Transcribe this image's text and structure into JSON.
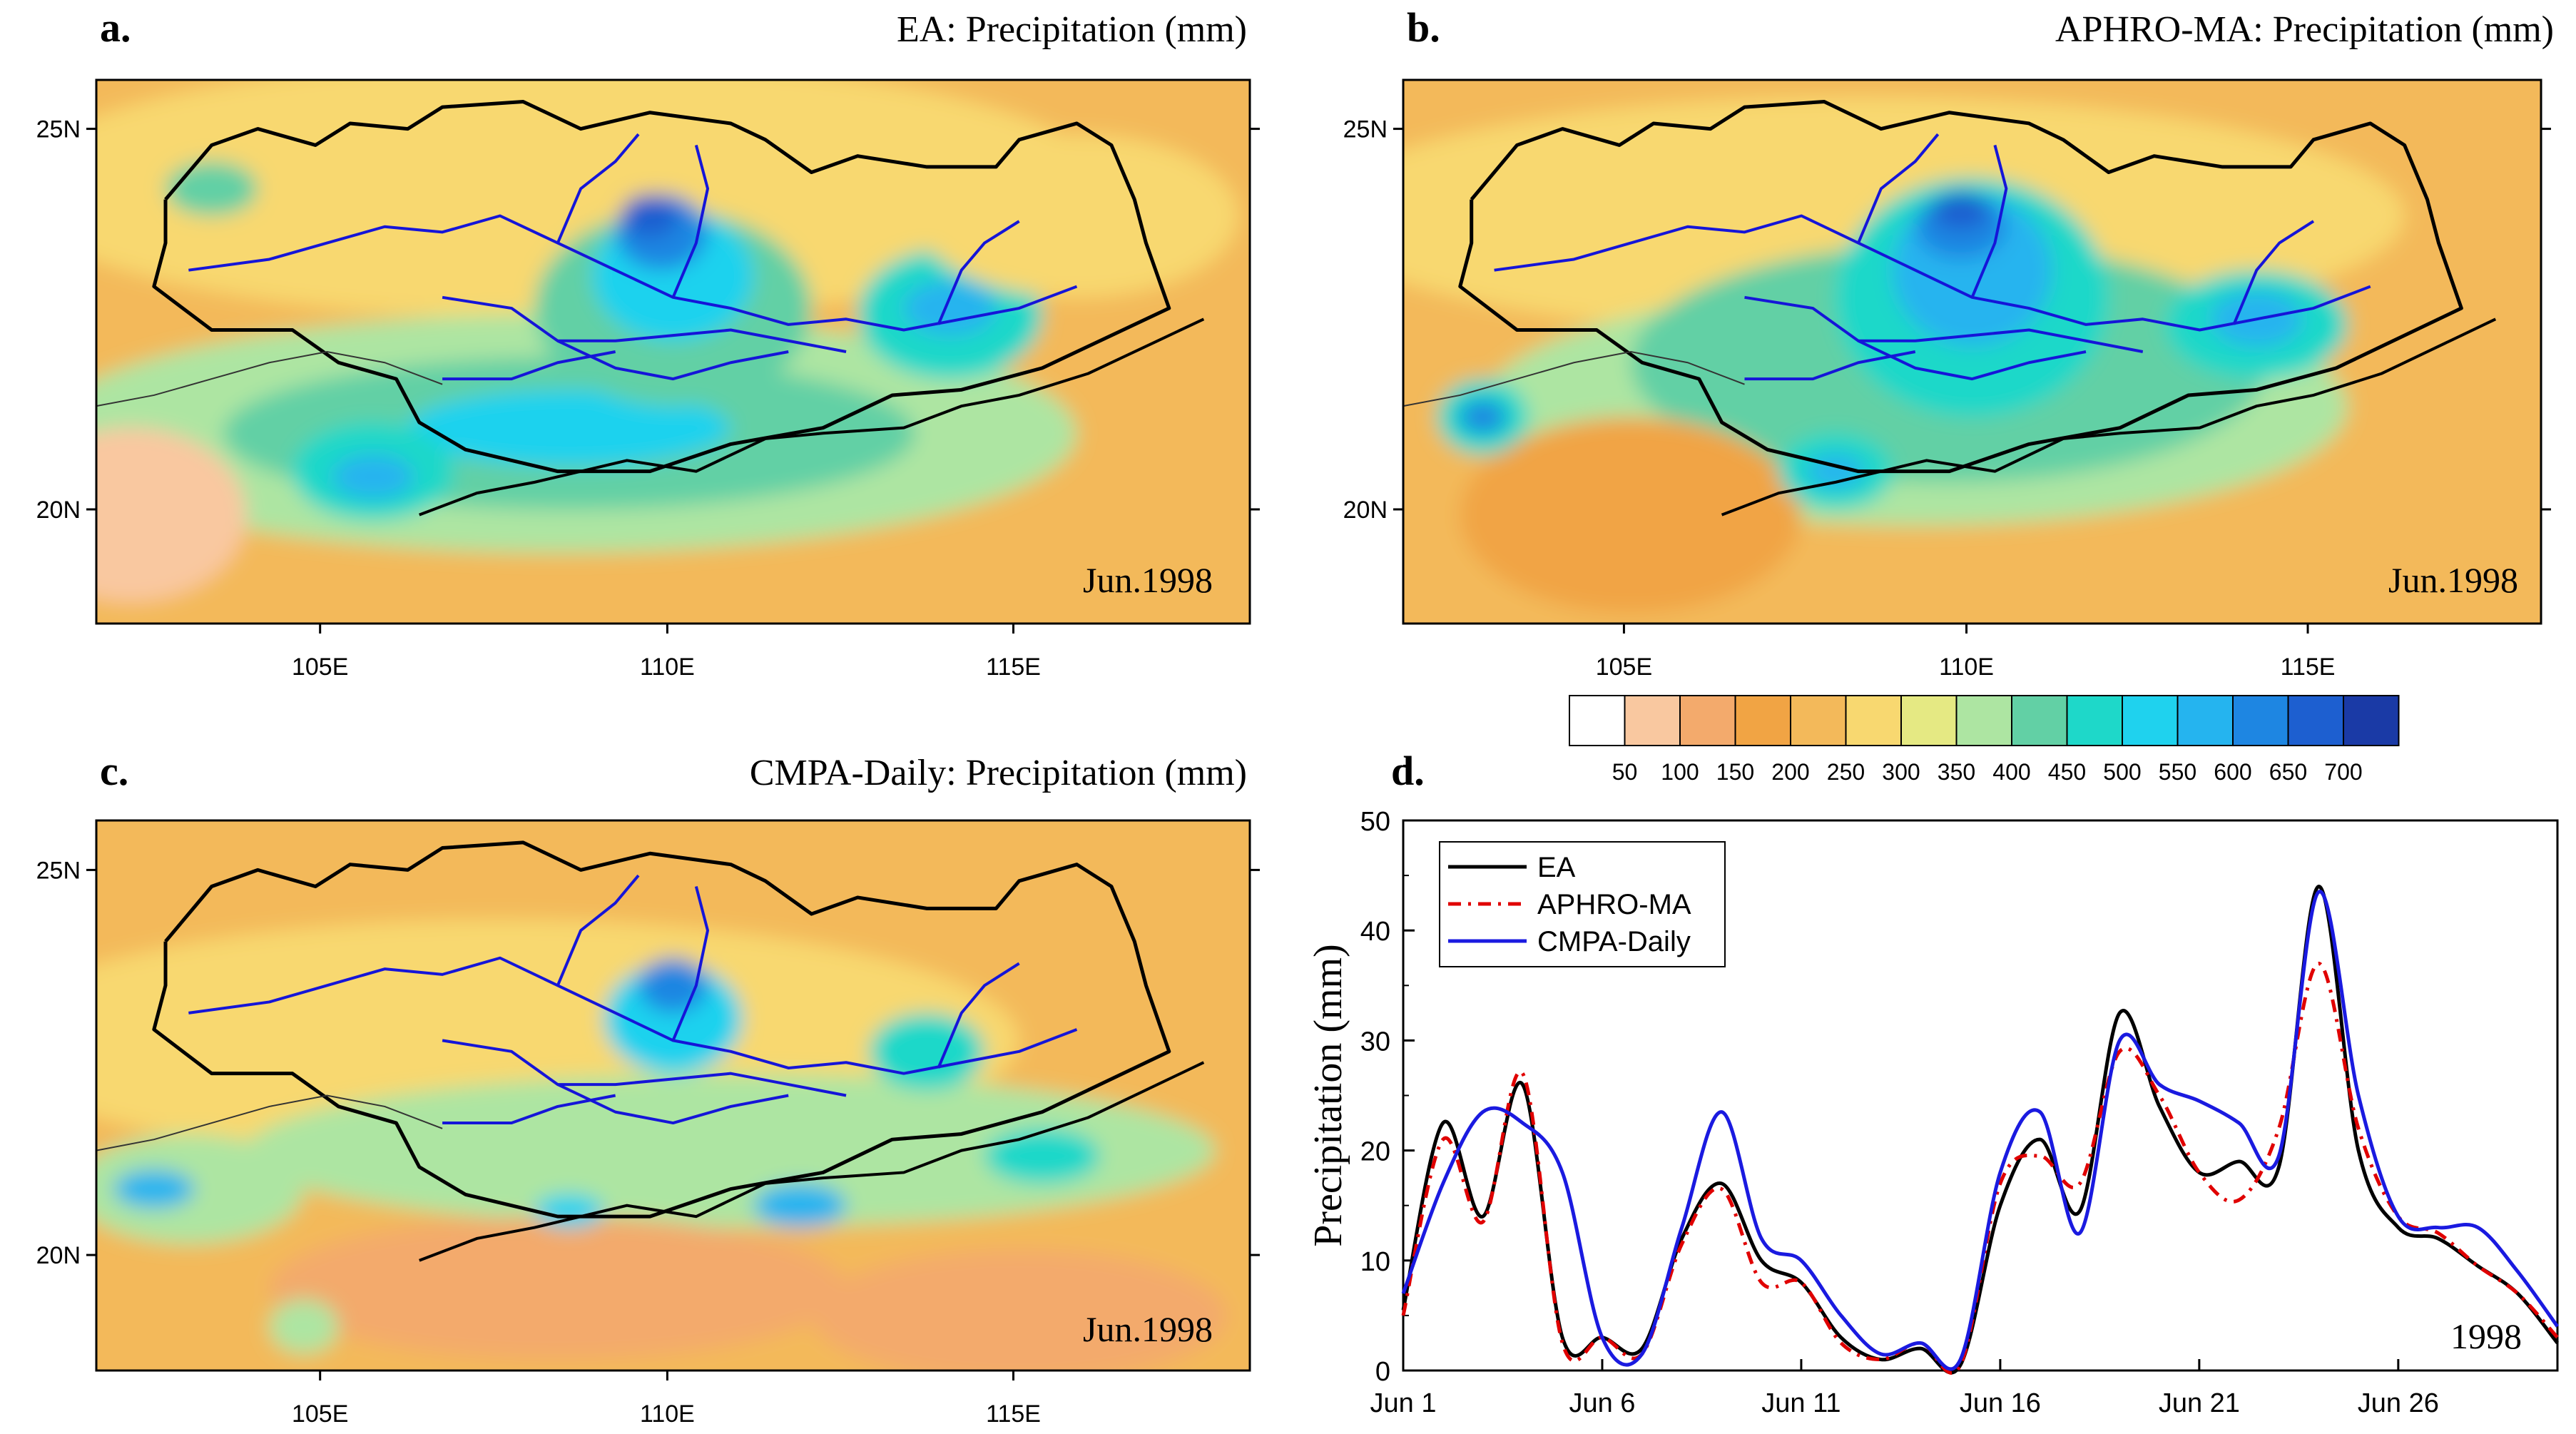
{
  "figure": {
    "colorbar": {
      "labels": [
        "50",
        "100",
        "150",
        "200",
        "250",
        "300",
        "350",
        "400",
        "450",
        "500",
        "550",
        "600",
        "650",
        "700"
      ],
      "colors": [
        "#ffffff",
        "#f9c8a0",
        "#f3aa6c",
        "#f1a444",
        "#f3b95a",
        "#f8d870",
        "#e5e983",
        "#ade5a2",
        "#62d0a5",
        "#1ed8c9",
        "#1fd2ee",
        "#25b4ef",
        "#1e86e2",
        "#1d5fd0",
        "#1a3aa6"
      ]
    },
    "maps": [
      {
        "id": "a",
        "panel_label": "a.",
        "title": "EA: Precipitation (mm)",
        "stamp": "Jun.1998",
        "lat_ticks": [
          "25N",
          "20N"
        ],
        "lon_ticks": [
          "105E",
          "110E",
          "115E"
        ],
        "blobs": [
          {
            "level": 5,
            "c": [
              40,
              20
            ],
            "r": [
              48,
              24
            ]
          },
          {
            "level": 7,
            "c": [
              40,
              65
            ],
            "r": [
              45,
              22
            ]
          },
          {
            "level": 8,
            "c": [
              41,
              65
            ],
            "r": [
              30,
              14
            ]
          },
          {
            "level": 10,
            "c": [
              41,
              64
            ],
            "r": [
              14,
              7
            ]
          },
          {
            "level": 1,
            "c": [
              3,
              80
            ],
            "r": [
              10,
              16
            ]
          },
          {
            "level": 8,
            "c": [
              50,
              42
            ],
            "r": [
              12,
              18
            ]
          },
          {
            "level": 10,
            "c": [
              50,
              36
            ],
            "r": [
              7,
              12
            ]
          },
          {
            "level": 12,
            "c": [
              49,
              28
            ],
            "r": [
              4,
              7
            ]
          },
          {
            "level": 13,
            "c": [
              48,
              25
            ],
            "r": [
              2.5,
              4
            ]
          },
          {
            "level": 9,
            "c": [
              74,
              43
            ],
            "r": [
              8,
              12
            ]
          },
          {
            "level": 11,
            "c": [
              74,
              42
            ],
            "r": [
              4,
              5
            ]
          },
          {
            "level": 9,
            "c": [
              24,
              72
            ],
            "r": [
              7,
              9
            ]
          },
          {
            "level": 11,
            "c": [
              24,
              73
            ],
            "r": [
              3.5,
              4
            ]
          },
          {
            "level": 5,
            "c": [
              85,
              25
            ],
            "r": [
              14,
              15
            ]
          },
          {
            "level": 8,
            "c": [
              10,
              20
            ],
            "r": [
              4,
              5
            ]
          }
        ]
      },
      {
        "id": "b",
        "panel_label": "b.",
        "title": "APHRO-MA: Precipitation (mm)",
        "stamp": "Jun.1998",
        "lat_ticks": [
          "25N",
          "20N"
        ],
        "lon_ticks": [
          "105E",
          "110E",
          "115E"
        ],
        "blobs": [
          {
            "level": 5,
            "c": [
              40,
              25
            ],
            "r": [
              48,
              22
            ]
          },
          {
            "level": 7,
            "c": [
              45,
              60
            ],
            "r": [
              38,
              22
            ]
          },
          {
            "level": 8,
            "c": [
              48,
              52
            ],
            "r": [
              28,
              22
            ]
          },
          {
            "level": 3,
            "c": [
              20,
              80
            ],
            "r": [
              15,
              18
            ]
          },
          {
            "level": 9,
            "c": [
              50,
              40
            ],
            "r": [
              12,
              22
            ]
          },
          {
            "level": 11,
            "c": [
              50,
              35
            ],
            "r": [
              7,
              14
            ]
          },
          {
            "level": 12,
            "c": [
              49,
              27
            ],
            "r": [
              4,
              6
            ]
          },
          {
            "level": 13,
            "c": [
              49,
              24
            ],
            "r": [
              2.5,
              3.5
            ]
          },
          {
            "level": 9,
            "c": [
              75,
              45
            ],
            "r": [
              8,
              10
            ]
          },
          {
            "level": 11,
            "c": [
              75,
              44
            ],
            "r": [
              4,
              5
            ]
          },
          {
            "level": 9,
            "c": [
              7,
              62
            ],
            "r": [
              4,
              7
            ]
          },
          {
            "level": 12,
            "c": [
              7,
              62
            ],
            "r": [
              2,
              3
            ]
          },
          {
            "level": 9,
            "c": [
              38,
              72
            ],
            "r": [
              5,
              7
            ]
          },
          {
            "level": 11,
            "c": [
              38,
              72
            ],
            "r": [
              2.5,
              3
            ]
          }
        ]
      },
      {
        "id": "c",
        "panel_label": "c.",
        "title": "CMPA-Daily: Precipitation (mm)",
        "stamp": "Jun.1998",
        "lat_ticks": [
          "25N",
          "20N"
        ],
        "lon_ticks": [
          "105E",
          "110E",
          "115E"
        ],
        "blobs": [
          {
            "level": 5,
            "c": [
              35,
              40
            ],
            "r": [
              45,
              22
            ]
          },
          {
            "level": 7,
            "c": [
              55,
              60
            ],
            "r": [
              42,
              14
            ]
          },
          {
            "level": 7,
            "c": [
              8,
              67
            ],
            "r": [
              10,
              10
            ]
          },
          {
            "level": 2,
            "c": [
              40,
              85
            ],
            "r": [
              25,
              13
            ]
          },
          {
            "level": 2,
            "c": [
              80,
              90
            ],
            "r": [
              18,
              12
            ]
          },
          {
            "level": 10,
            "c": [
              50,
              36
            ],
            "r": [
              6,
              10
            ]
          },
          {
            "level": 12,
            "c": [
              50,
              30
            ],
            "r": [
              3,
              5
            ]
          },
          {
            "level": 11,
            "c": [
              5,
              67
            ],
            "r": [
              3.5,
              3.5
            ]
          },
          {
            "level": 11,
            "c": [
              61,
              70
            ],
            "r": [
              4,
              4
            ]
          },
          {
            "level": 10,
            "c": [
              41,
              71
            ],
            "r": [
              3,
              3
            ]
          },
          {
            "level": 9,
            "c": [
              72,
              42
            ],
            "r": [
              5,
              7
            ]
          },
          {
            "level": 9,
            "c": [
              82,
              61
            ],
            "r": [
              5,
              5
            ]
          },
          {
            "level": 7,
            "c": [
              18,
              92
            ],
            "r": [
              3,
              5
            ]
          }
        ]
      }
    ],
    "timeseries": {
      "panel_label": "d.",
      "year_label": "1998"
    }
  },
  "chart_data": [
    {
      "type": "line",
      "title": "d.",
      "xlabel": "",
      "ylabel": "Precipitation (mm)",
      "x_tick_labels": [
        "Jun 1",
        "Jun 6",
        "Jun 11",
        "Jun 16",
        "Jun 21",
        "Jun 26"
      ],
      "x_tick_days": [
        1,
        6,
        11,
        16,
        21,
        26
      ],
      "xlim": [
        1,
        30
      ],
      "ylim": [
        0,
        50
      ],
      "y_ticks": [
        0,
        10,
        20,
        30,
        40,
        50
      ],
      "annotation": "1998",
      "legend_position": "top-left",
      "x": [
        1,
        2,
        3,
        4,
        5,
        6,
        7,
        8,
        9,
        10,
        11,
        12,
        13,
        14,
        15,
        16,
        17,
        18,
        19,
        20,
        21,
        22,
        23,
        24,
        25,
        26,
        27,
        28,
        29,
        30
      ],
      "series": [
        {
          "name": "EA",
          "color": "#000000",
          "dash": "solid",
          "values": [
            5.5,
            22.5,
            14,
            26,
            3,
            3,
            2,
            12,
            17,
            10,
            8,
            3,
            1,
            2,
            0.5,
            15,
            21,
            14.5,
            32.5,
            24,
            18,
            19,
            18.5,
            44,
            20,
            13,
            12,
            9.5,
            7,
            2.5
          ]
        },
        {
          "name": "APHRO-MA",
          "color": "#e00000",
          "dash": "dashdot",
          "values": [
            5,
            21,
            13.5,
            27,
            2.5,
            3,
            1.5,
            11.5,
            16.5,
            8,
            8,
            2.5,
            1,
            2.5,
            0.5,
            17,
            19.5,
            17,
            29,
            25,
            18,
            15.5,
            22,
            37,
            22,
            14,
            12.5,
            9.5,
            7,
            3
          ]
        },
        {
          "name": "CMPA-Daily",
          "color": "#1a1ae0",
          "dash": "solid",
          "values": [
            7,
            17,
            23.5,
            22.5,
            18,
            3,
            1.5,
            13,
            23.5,
            12,
            10,
            5,
            1.5,
            2.5,
            1,
            18,
            23.5,
            12.5,
            30,
            26,
            24.5,
            22.5,
            19.5,
            43.5,
            25,
            14,
            13,
            13,
            9,
            4
          ]
        }
      ]
    }
  ]
}
